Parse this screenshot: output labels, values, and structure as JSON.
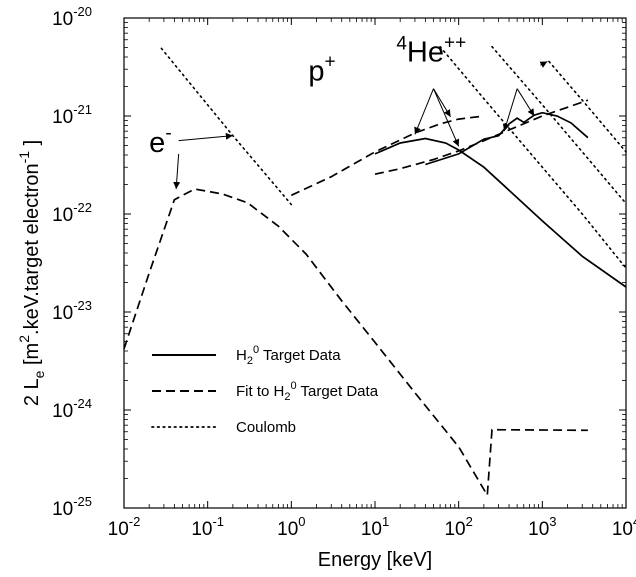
{
  "chart_data": {
    "type": "line",
    "title": "",
    "xlabel": "Energy [keV]",
    "ylabel": {
      "prefix": "2 L",
      "sub": "e",
      "unit_open": " [m",
      "unit_exp": "2",
      "unit_mid": ".keV.target electron",
      "unit_exp2": "-1",
      "unit_close": " ]"
    },
    "xscale": "log",
    "yscale": "log",
    "xlim": [
      0.01,
      10000
    ],
    "ylim": [
      1e-25,
      1e-20
    ],
    "grid": false,
    "xticks": [
      {
        "base": "10",
        "exp": "-2",
        "value": 0.01
      },
      {
        "base": "10",
        "exp": "-1",
        "value": 0.1
      },
      {
        "base": "10",
        "exp": "0",
        "value": 1
      },
      {
        "base": "10",
        "exp": "1",
        "value": 10
      },
      {
        "base": "10",
        "exp": "2",
        "value": 100
      },
      {
        "base": "10",
        "exp": "3",
        "value": 1000
      },
      {
        "base": "10",
        "exp": "4",
        "value": 10000
      }
    ],
    "yticks": [
      {
        "base": "10",
        "exp": "-25",
        "value": 1e-25
      },
      {
        "base": "10",
        "exp": "-24",
        "value": 1e-24
      },
      {
        "base": "10",
        "exp": "-23",
        "value": 1e-23
      },
      {
        "base": "10",
        "exp": "-22",
        "value": 1e-22
      },
      {
        "base": "10",
        "exp": "-21",
        "value": 1e-21
      },
      {
        "base": "10",
        "exp": "-20",
        "value": 1e-20
      }
    ],
    "legend": {
      "placement": "bottom-left",
      "entries": [
        {
          "style": "solid",
          "label_pre": "H",
          "label_sub": "2",
          "label_sup": "0",
          "label_post": " Target Data"
        },
        {
          "style": "dashed",
          "label_pre": "Fit to H",
          "label_sub": "2",
          "label_sup": "0",
          "label_post": " Target Data"
        },
        {
          "style": "dotted",
          "label_pre": "Coulomb",
          "label_sub": "",
          "label_sup": "",
          "label_post": ""
        }
      ]
    },
    "series": [
      {
        "style": "dashed",
        "points": [
          [
            0.01,
            4.2e-24
          ],
          [
            0.02,
            2.5e-23
          ],
          [
            0.04,
            1.4e-22
          ],
          [
            0.07,
            1.8e-22
          ],
          [
            0.15,
            1.6e-22
          ],
          [
            0.3,
            1.3e-22
          ],
          [
            0.7,
            7.5e-23
          ],
          [
            1.5,
            3.9e-23
          ],
          [
            4,
            1.3e-23
          ],
          [
            10,
            4.9e-24
          ],
          [
            30,
            1.5e-24
          ],
          [
            100,
            4.2e-25
          ],
          [
            220,
            1.35e-25
          ],
          [
            250,
            6.3e-25
          ],
          [
            3500,
            6.2e-25
          ]
        ]
      },
      {
        "style": "dotted",
        "points": [
          [
            0.028,
            4.9e-21
          ],
          [
            0.2,
            6.3e-22
          ],
          [
            1,
            1.25e-22
          ]
        ]
      },
      {
        "style": "dashed",
        "points": [
          [
            1,
            1.55e-22
          ],
          [
            3,
            2.4e-22
          ],
          [
            10,
            4.3e-22
          ],
          [
            30,
            6.7e-22
          ],
          [
            60,
            8.3e-22
          ],
          [
            100,
            9.3e-22
          ],
          [
            200,
            1e-21
          ]
        ]
      },
      {
        "style": "solid",
        "points": [
          [
            10,
            4.1e-22
          ],
          [
            20,
            5.3e-22
          ],
          [
            40,
            5.9e-22
          ],
          [
            70,
            5.3e-22
          ],
          [
            100,
            4.5e-22
          ],
          [
            200,
            3e-22
          ],
          [
            400,
            1.75e-22
          ],
          [
            1000,
            8.5e-23
          ],
          [
            3000,
            3.7e-23
          ],
          [
            10000,
            1.8e-23
          ]
        ]
      },
      {
        "style": "dashed",
        "points": [
          [
            10,
            2.55e-22
          ],
          [
            20,
            2.9e-22
          ],
          [
            50,
            3.6e-22
          ],
          [
            100,
            4.4e-22
          ],
          [
            200,
            5.6e-22
          ],
          [
            400,
            7.2e-22
          ],
          [
            1000,
            1e-21
          ],
          [
            3500,
            1.45e-21
          ]
        ]
      },
      {
        "style": "solid",
        "points": [
          [
            40,
            3.2e-22
          ],
          [
            100,
            4.1e-22
          ],
          [
            200,
            5.8e-22
          ],
          [
            300,
            6.3e-22
          ],
          [
            400,
            8.3e-22
          ],
          [
            500,
            9.5e-22
          ],
          [
            600,
            8.6e-22
          ],
          [
            800,
            1.02e-21
          ],
          [
            1000,
            1.08e-21
          ],
          [
            1500,
            1e-21
          ],
          [
            2200,
            8.5e-22
          ],
          [
            3500,
            6e-22
          ]
        ]
      },
      {
        "style": "dotted",
        "points": [
          [
            60,
            5.1e-21
          ],
          [
            200,
            1.5e-21
          ],
          [
            1000,
            3e-22
          ],
          [
            3000,
            1e-22
          ],
          [
            10000,
            2.8e-23
          ]
        ]
      },
      {
        "style": "dotted",
        "points": [
          [
            250,
            5.1e-21
          ],
          [
            1000,
            1.3e-21
          ],
          [
            3000,
            4.3e-22
          ],
          [
            10000,
            1.28e-22
          ]
        ]
      },
      {
        "style": "dotted",
        "points": [
          [
            1200,
            3.6e-21
          ],
          [
            3000,
            1.45e-21
          ],
          [
            10000,
            4.3e-22
          ]
        ]
      }
    ],
    "annotations": [
      {
        "label": "e",
        "sup": "-",
        "x": 0.02,
        "y": 4.3e-22,
        "arrows": [
          [
            [
              0.045,
              5.6e-22
            ],
            [
              0.2,
              6.3e-22
            ]
          ],
          [
            [
              0.045,
              4.1e-22
            ],
            [
              0.042,
              1.8e-22
            ]
          ]
        ]
      },
      {
        "label": "p",
        "sup": "+",
        "x": 1.6,
        "y": 2.3e-21,
        "arrows": [
          [
            [
              50,
              1.9e-21
            ],
            [
              30,
              6.5e-22
            ]
          ],
          [
            [
              50,
              1.9e-21
            ],
            [
              80,
              9.8e-22
            ]
          ],
          [
            [
              50,
              1.9e-21
            ],
            [
              100,
              4.9e-22
            ]
          ]
        ]
      },
      {
        "label": "",
        "pre_sup": "4",
        "label2": "He",
        "sup": "++",
        "x": 18,
        "y": 3.6e-21,
        "arrows": [
          [
            [
              950,
              3.3e-21
            ],
            [
              1150,
              3.6e-21
            ]
          ],
          [
            [
              500,
              1.9e-21
            ],
            [
              350,
              7e-22
            ]
          ],
          [
            [
              500,
              1.9e-21
            ],
            [
              800,
              1e-21
            ]
          ]
        ]
      }
    ]
  }
}
